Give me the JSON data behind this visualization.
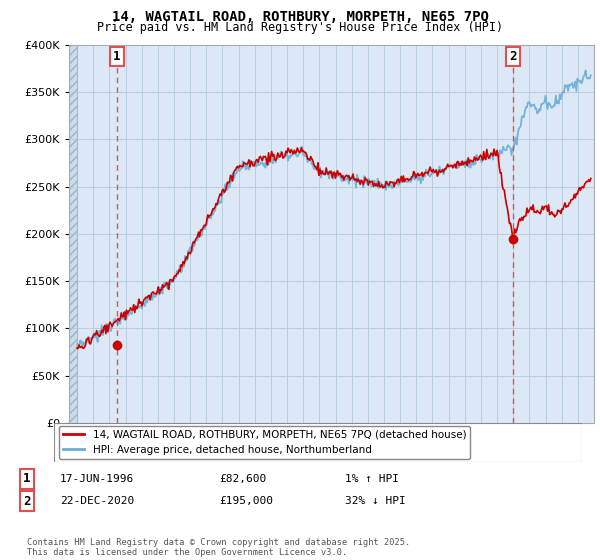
{
  "title_line1": "14, WAGTAIL ROAD, ROTHBURY, MORPETH, NE65 7PQ",
  "title_line2": "Price paid vs. HM Land Registry's House Price Index (HPI)",
  "legend_line1": "14, WAGTAIL ROAD, ROTHBURY, MORPETH, NE65 7PQ (detached house)",
  "legend_line2": "HPI: Average price, detached house, Northumberland",
  "annotation1_label": "1",
  "annotation1_date": "17-JUN-1996",
  "annotation1_price": "£82,600",
  "annotation1_hpi": "1% ↑ HPI",
  "annotation2_label": "2",
  "annotation2_date": "22-DEC-2020",
  "annotation2_price": "£195,000",
  "annotation2_hpi": "32% ↓ HPI",
  "footer": "Contains HM Land Registry data © Crown copyright and database right 2025.\nThis data is licensed under the Open Government Licence v3.0.",
  "hpi_color": "#6baed6",
  "price_color": "#cc0000",
  "annotation_vline_color": "#e05050",
  "marker1_x": 1996.46,
  "marker1_y": 82600,
  "marker2_x": 2020.98,
  "marker2_y": 195000,
  "ylim": [
    0,
    400000
  ],
  "xlim_start": 1993.5,
  "xlim_end": 2026.0,
  "chart_bg": "#dce8f5",
  "grid_color": "#b8cfe0"
}
